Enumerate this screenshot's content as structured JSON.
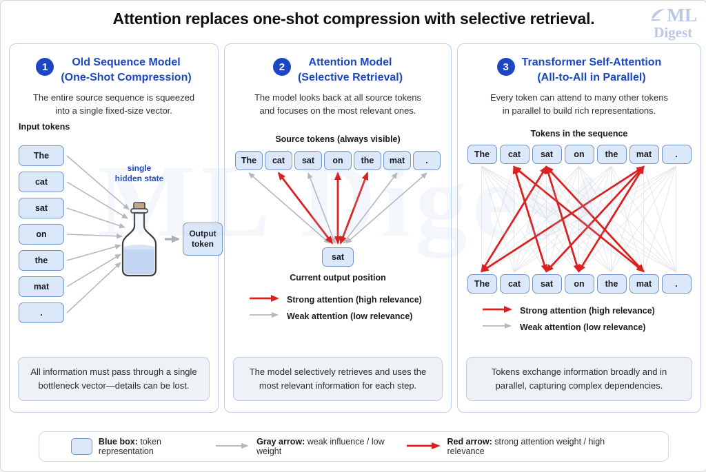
{
  "title": "Attention replaces one-shot compression with selective retrieval.",
  "logo": {
    "ml": "ML",
    "digest": "Digest"
  },
  "watermark": "ML Digest",
  "colors": {
    "accent_blue": "#1c47c4",
    "strong_red": "#d92121",
    "weak_gray": "#b6b6bf",
    "token_fill": "#dbe8fa",
    "token_border": "#6f93cb"
  },
  "panels": [
    {
      "number": "1",
      "title_line1": "Old Sequence Model",
      "title_line2": "(One-Shot Compression)",
      "desc_line1": "The entire source sequence is squeezed",
      "desc_line2": "into a single fixed-size vector.",
      "input_label": "Input tokens",
      "tokens": [
        "The",
        "cat",
        "sat",
        "on",
        "the",
        "mat",
        "."
      ],
      "hidden_state_line1": "single",
      "hidden_state_line2": "hidden state",
      "output_label": "Output token",
      "footer": "All information must pass through a single bottleneck vector—details can be lost."
    },
    {
      "number": "2",
      "title_line1": "Attention Model",
      "title_line2": "(Selective Retrieval)",
      "desc_line1": "The model looks back at all source tokens",
      "desc_line2": "and focuses on the most relevant ones.",
      "source_label": "Source tokens (always visible)",
      "tokens": [
        "The",
        "cat",
        "sat",
        "on",
        "the",
        "mat",
        "."
      ],
      "current_token": "sat",
      "current_label": "Current output position",
      "strong_indexes": [
        1,
        3,
        4
      ],
      "weak_indexes": [
        0,
        2,
        5,
        6
      ],
      "legend": [
        {
          "type": "strong",
          "label": "Strong attention (high relevance)"
        },
        {
          "type": "weak",
          "label": "Weak attention (low relevance)"
        }
      ],
      "footer": "The model selectively retrieves and uses the most relevant information for each step."
    },
    {
      "number": "3",
      "title_line1": "Transformer Self-Attention",
      "title_line2": "(All-to-All in Parallel)",
      "desc_line1": "Every token can attend to many other tokens",
      "desc_line2": "in parallel to build rich representations.",
      "sequence_label": "Tokens in the sequence",
      "tokens": [
        "The",
        "cat",
        "sat",
        "on",
        "the",
        "mat",
        "."
      ],
      "strong_connections": [
        [
          1,
          2
        ],
        [
          1,
          5
        ],
        [
          2,
          0
        ],
        [
          2,
          3
        ],
        [
          2,
          5
        ],
        [
          5,
          0
        ],
        [
          5,
          2
        ],
        [
          5,
          3
        ]
      ],
      "legend": [
        {
          "type": "strong",
          "label": "Strong attention (high relevance)"
        },
        {
          "type": "weak",
          "label": "Weak attention (low relevance)"
        }
      ],
      "footer": "Tokens exchange information broadly and in parallel, capturing complex dependencies."
    }
  ],
  "bottom_legend": [
    {
      "swatch": "blue-box",
      "bold": "Blue box:",
      "rest": " token representation"
    },
    {
      "swatch": "gray-arrow",
      "bold": "Gray arrow:",
      "rest": " weak influence / low weight"
    },
    {
      "swatch": "red-arrow",
      "bold": "Red arrow:",
      "rest": " strong attention weight / high relevance"
    }
  ]
}
